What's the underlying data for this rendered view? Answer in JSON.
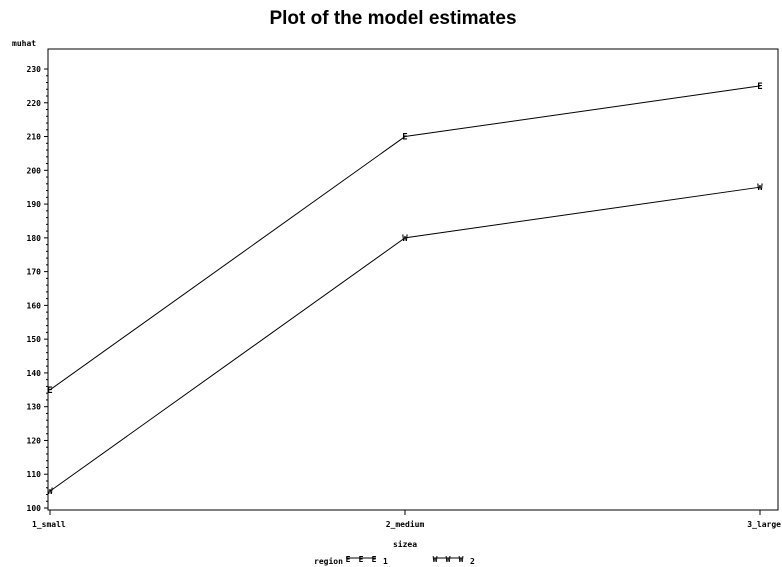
{
  "chart_data": {
    "type": "line",
    "title": "Plot of the model estimates",
    "xlabel": "sizea",
    "ylabel": "muhat",
    "categories": [
      "1_small",
      "2_medium",
      "3_large"
    ],
    "ylim": [
      100,
      230
    ],
    "yticks": [
      100,
      110,
      120,
      130,
      140,
      150,
      160,
      170,
      180,
      190,
      200,
      210,
      220,
      230
    ],
    "grid": false,
    "legend": {
      "label": "region",
      "placement": "bottom-center",
      "entries": [
        {
          "symbol": "E",
          "text": "1"
        },
        {
          "symbol": "W",
          "text": "2"
        }
      ]
    },
    "series": [
      {
        "name": "1",
        "marker": "E",
        "values": [
          135,
          210,
          225
        ]
      },
      {
        "name": "2",
        "marker": "W",
        "values": [
          105,
          180,
          195
        ]
      }
    ]
  },
  "colors": {
    "line": "#000000",
    "background": "#ffffff"
  }
}
